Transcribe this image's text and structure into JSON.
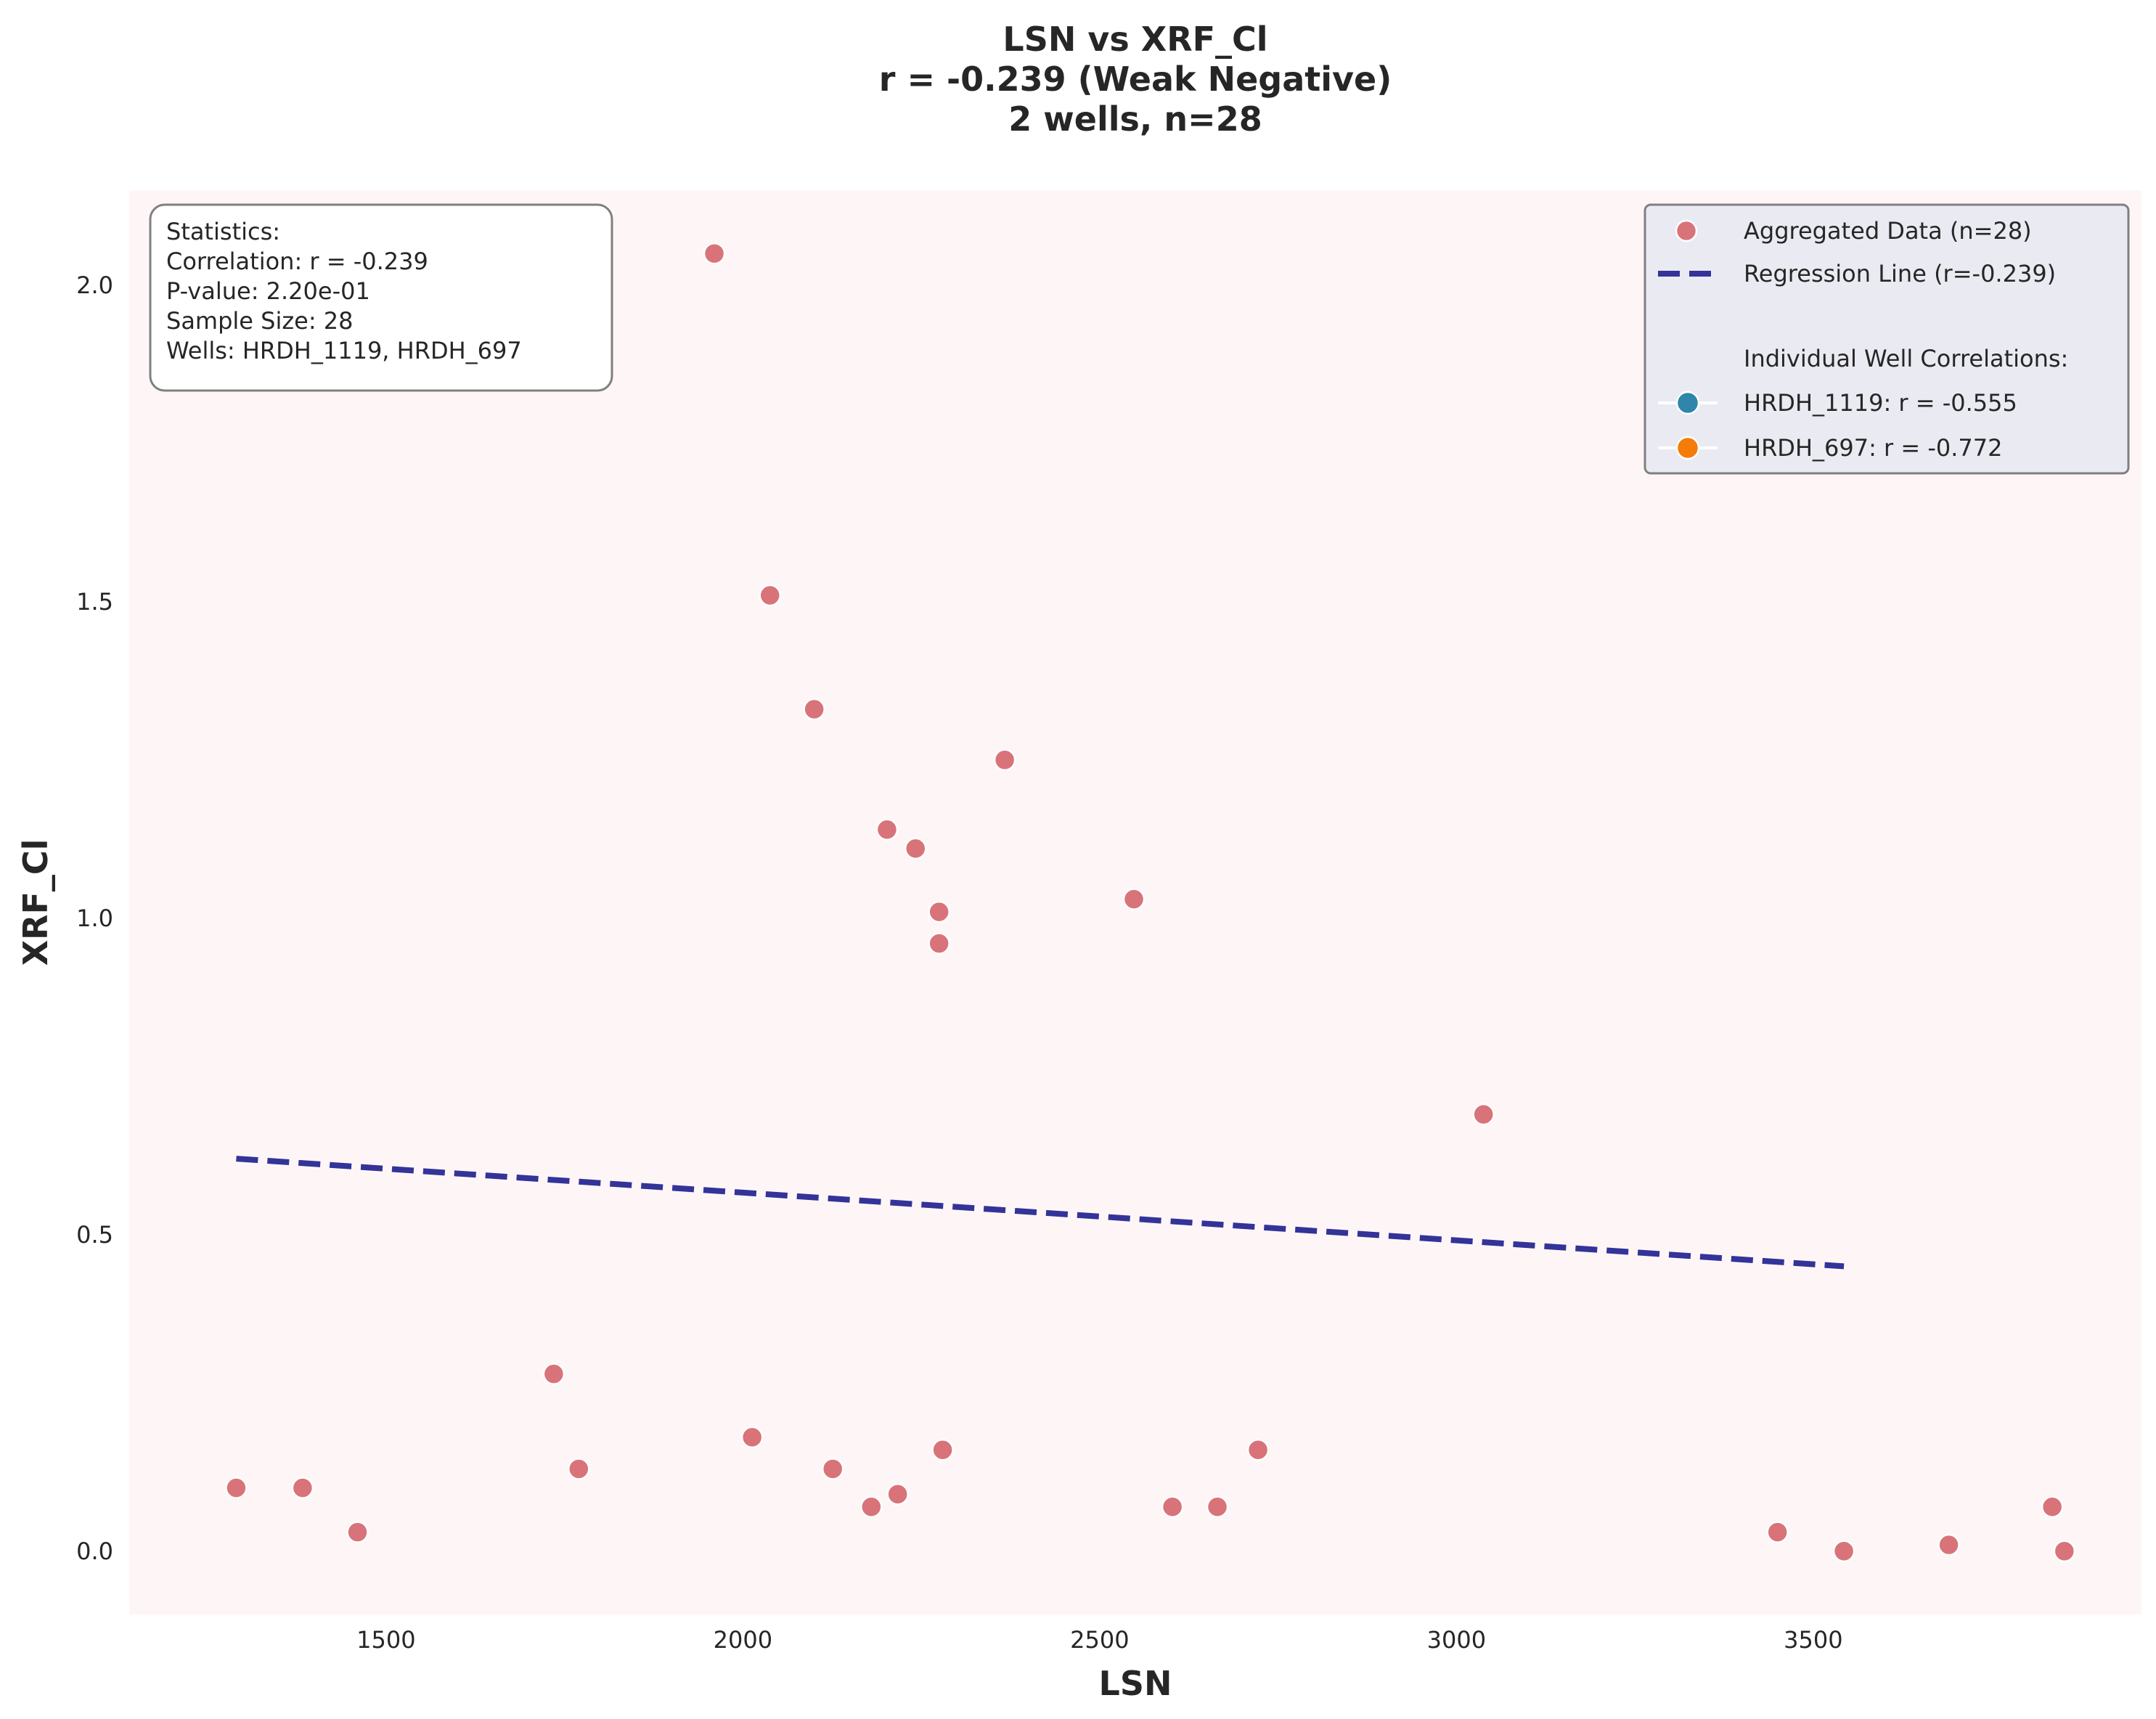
{
  "chart_data": {
    "type": "scatter",
    "title": [
      "LSN vs XRF_Cl",
      "r = -0.239 (Weak Negative)",
      "2 wells, n=28"
    ],
    "xlabel": "LSN",
    "ylabel": "XRF_Cl",
    "xlim": [
      1140,
      3960
    ],
    "ylim": [
      -0.1,
      2.15
    ],
    "xticks": [
      1500,
      2000,
      2500,
      3000,
      3500
    ],
    "yticks": [
      0.0,
      0.5,
      1.0,
      1.5,
      2.0
    ],
    "xtick_labels": [
      "1500",
      "2000",
      "2500",
      "3000",
      "3500"
    ],
    "ytick_labels": [
      "0.0",
      "0.5",
      "1.0",
      "1.5",
      "2.0"
    ],
    "grid": false,
    "series": [
      {
        "name": "Aggregated Data (n=28)",
        "color": "#d9737a",
        "points": [
          {
            "x": 1290,
            "y": 0.1
          },
          {
            "x": 1383,
            "y": 0.1
          },
          {
            "x": 1460,
            "y": 0.03
          },
          {
            "x": 1735,
            "y": 0.28
          },
          {
            "x": 1770,
            "y": 0.13
          },
          {
            "x": 1960,
            "y": 2.05
          },
          {
            "x": 2013,
            "y": 0.18
          },
          {
            "x": 2038,
            "y": 1.51
          },
          {
            "x": 2100,
            "y": 1.33
          },
          {
            "x": 2126,
            "y": 0.13
          },
          {
            "x": 2180,
            "y": 0.07
          },
          {
            "x": 2202,
            "y": 1.14
          },
          {
            "x": 2217,
            "y": 0.09
          },
          {
            "x": 2242,
            "y": 1.11
          },
          {
            "x": 2275,
            "y": 1.01
          },
          {
            "x": 2275,
            "y": 0.96
          },
          {
            "x": 2280,
            "y": 0.16
          },
          {
            "x": 2367,
            "y": 1.25
          },
          {
            "x": 2548,
            "y": 1.03
          },
          {
            "x": 2602,
            "y": 0.07
          },
          {
            "x": 2665,
            "y": 0.07
          },
          {
            "x": 2722,
            "y": 0.16
          },
          {
            "x": 3038,
            "y": 0.69
          },
          {
            "x": 3450,
            "y": 0.03
          },
          {
            "x": 3543,
            "y": 0.0
          },
          {
            "x": 3690,
            "y": 0.01
          },
          {
            "x": 3835,
            "y": 0.07
          },
          {
            "x": 3852,
            "y": 0.0
          }
        ]
      },
      {
        "name": "Regression Line (r=-0.239)",
        "color": "#333399",
        "line": [
          {
            "x": 1290,
            "y": 0.62
          },
          {
            "x": 3543,
            "y": 0.45
          }
        ]
      }
    ],
    "legend": {
      "placement": "top-right",
      "header": "Individual Well Correlations:",
      "wells": [
        {
          "label": "HRDH_1119: r = -0.555",
          "color": "#2e86ab"
        },
        {
          "label": "HRDH_697: r = -0.772",
          "color": "#f57c0a"
        }
      ]
    },
    "stats_box": {
      "placement": "top-left",
      "lines": [
        "Statistics:",
        "Correlation: r = -0.239",
        "P-value: 2.20e-01",
        "Sample Size: 28",
        "Wells: HRDH_1119, HRDH_697"
      ]
    }
  }
}
